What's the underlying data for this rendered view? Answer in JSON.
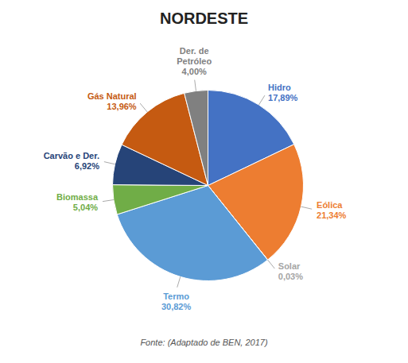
{
  "chart_data": {
    "type": "pie",
    "title": "NORDESTE",
    "categories": [
      "Hidro",
      "Eólica",
      "Solar",
      "Termo",
      "Biomassa",
      "Carvão e Der.",
      "Gás Natural",
      "Der. de\nPetróleo"
    ],
    "values": [
      17.89,
      21.34,
      0.03,
      30.82,
      5.04,
      6.92,
      13.96,
      4.0
    ],
    "value_labels": [
      "17,89%",
      "21,34%",
      "0,03%",
      "30,82%",
      "5,04%",
      "6,92%",
      "13,96%",
      "4,00%"
    ],
    "colors": [
      "#4472C4",
      "#ED7D31",
      "#A5A5A5",
      "#5B9BD5",
      "#70AD47",
      "#264478",
      "#C55A11",
      "#808080"
    ],
    "annotations": [
      "Fonte: (Adaptado de BEN, 2017)"
    ],
    "data_labels": true
  }
}
